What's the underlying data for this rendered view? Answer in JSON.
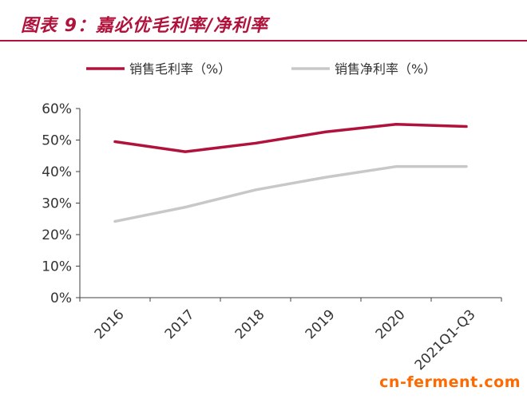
{
  "title": "图表 9：嘉必优毛利率/净利率",
  "watermark": "cn-ferment.com",
  "colors": {
    "accent": "#b0123b",
    "gross": "#b0123b",
    "net": "#c8c8c8",
    "axis": "#404040"
  },
  "chart_data": {
    "type": "line",
    "categories": [
      "2016",
      "2017",
      "2018",
      "2019",
      "2020",
      "2021Q1-Q3"
    ],
    "series": [
      {
        "name": "销售毛利率（%）",
        "values": [
          49.5,
          46.3,
          49.0,
          52.6,
          55.0,
          54.3
        ],
        "color": "#b0123b"
      },
      {
        "name": "销售净利率（%）",
        "values": [
          24.2,
          28.7,
          34.2,
          38.2,
          41.6,
          41.6
        ],
        "color": "#c8c8c8"
      }
    ],
    "yticks": [
      "0%",
      "10%",
      "20%",
      "30%",
      "40%",
      "50%",
      "60%"
    ],
    "ylim": [
      0,
      60
    ],
    "legend": "top",
    "grid": false
  }
}
